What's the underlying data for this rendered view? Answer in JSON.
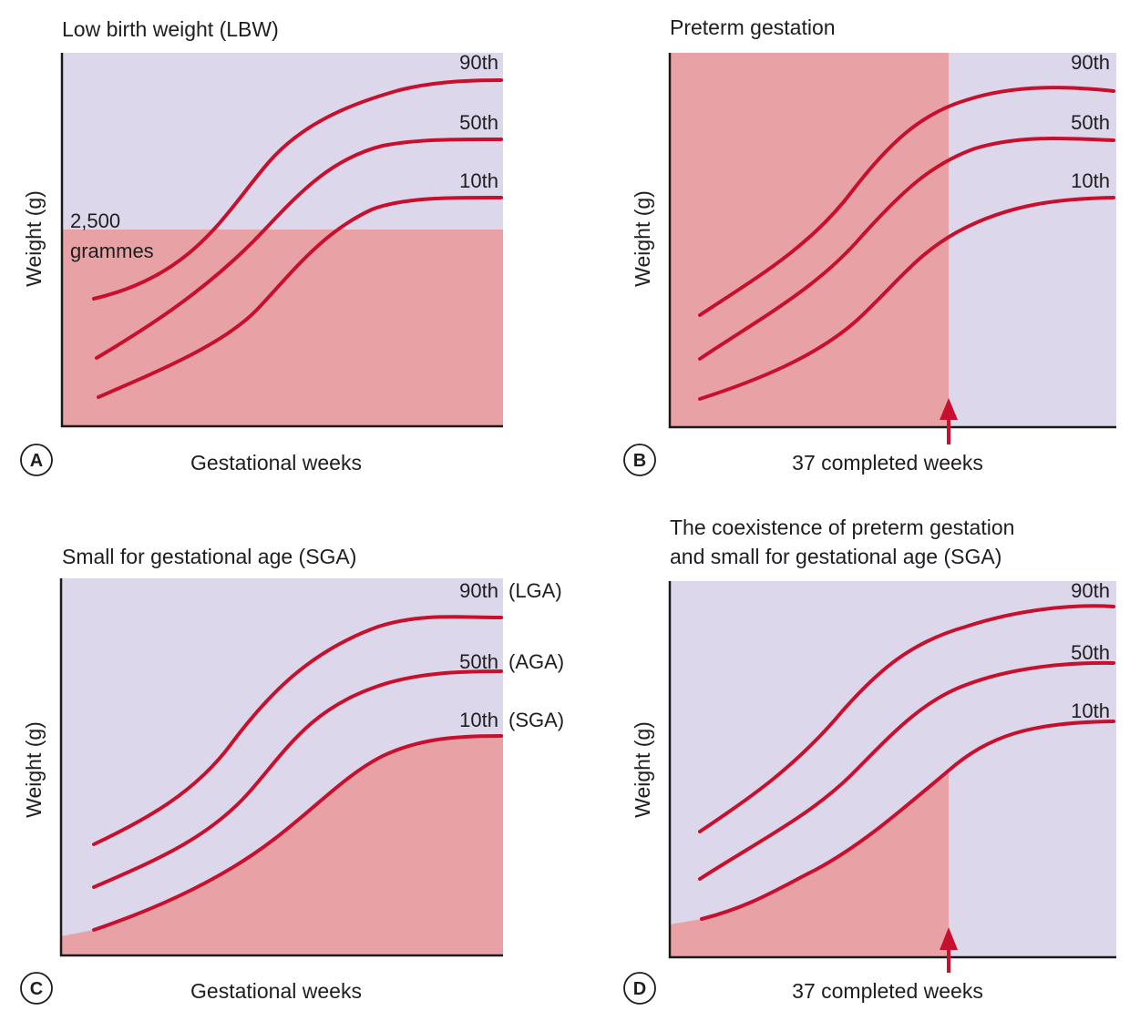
{
  "colors": {
    "background_fill": "#dcd7ea",
    "highlight_fill": "#e8a2a5",
    "curve": "#c8102e",
    "arrow": "#c8102e",
    "axis": "#1a1a1a"
  },
  "panels": [
    {
      "letter": "A",
      "title_lines": [
        "Low birth weight (LBW)"
      ],
      "ylabel": "Weight (g)",
      "xlabel": "Gestational weeks",
      "percentiles": [
        "90th",
        "50th",
        "10th"
      ],
      "group_labels": [],
      "threshold_label_lines": [
        "2,500",
        "grammes"
      ]
    },
    {
      "letter": "B",
      "title_lines": [
        "Preterm gestation"
      ],
      "ylabel": "Weight (g)",
      "xlabel": "37 completed weeks",
      "percentiles": [
        "90th",
        "50th",
        "10th"
      ],
      "group_labels": []
    },
    {
      "letter": "C",
      "title_lines": [
        "Small for gestational age (SGA)"
      ],
      "ylabel": "Weight (g)",
      "xlabel": "Gestational weeks",
      "percentiles": [
        "90th",
        "50th",
        "10th"
      ],
      "group_labels": [
        "(LGA)",
        "(AGA)",
        "(SGA)"
      ]
    },
    {
      "letter": "D",
      "title_lines": [
        "The coexistence of preterm gestation",
        "and small for gestational age (SGA)"
      ],
      "ylabel": "Weight (g)",
      "xlabel": "37 completed weeks",
      "percentiles": [
        "90th",
        "50th",
        "10th"
      ],
      "group_labels": []
    }
  ]
}
